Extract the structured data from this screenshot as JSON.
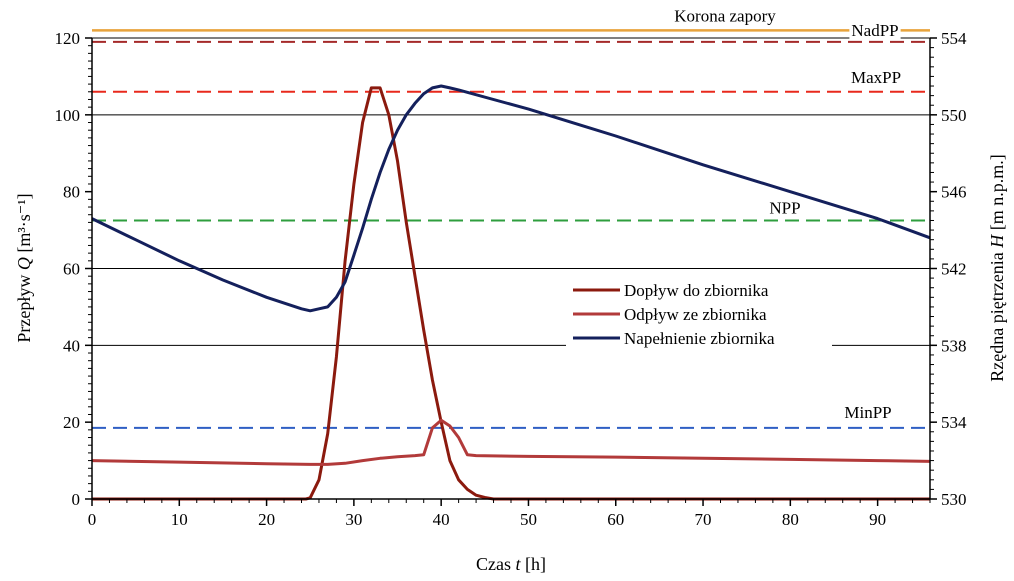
{
  "chart_data": {
    "type": "line",
    "x": {
      "label_main": "Czas ",
      "label_italic": "t",
      "label_unit": " [h]",
      "range": [
        0,
        96
      ],
      "ticks": [
        0,
        10,
        20,
        30,
        40,
        50,
        60,
        70,
        80,
        90
      ]
    },
    "y_left": {
      "label_prefix": "Przepływ ",
      "label_italic": "Q",
      "label_unit": " [m³·s⁻¹]",
      "range": [
        0,
        120
      ],
      "ticks": [
        0,
        20,
        40,
        60,
        80,
        100,
        120
      ],
      "gridlines": [
        0,
        40,
        60,
        100,
        120
      ]
    },
    "y_right": {
      "label_prefix": "Rzędna piętrzenia ",
      "label_italic": "H",
      "label_unit": " [m n.p.m.]",
      "range": [
        530,
        554
      ],
      "ticks": [
        530,
        534,
        538,
        542,
        546,
        550,
        554
      ]
    },
    "reference_lines": [
      {
        "label": "Korona zapory",
        "H": 554.4,
        "color": "#e8a33c",
        "style": "solid"
      },
      {
        "label": "NadPP",
        "H": 553.8,
        "color": "#a52a2a",
        "style": "dashed"
      },
      {
        "label": "MaxPP",
        "H": 551.2,
        "color": "#e8291c",
        "style": "dashed"
      },
      {
        "label": "NPP",
        "H": 544.5,
        "color": "#2e9e3e",
        "style": "dashed"
      },
      {
        "label": "MinPP",
        "H": 533.7,
        "color": "#2f5fc4",
        "style": "dashed"
      }
    ],
    "series": [
      {
        "name": "Dopływ do zbiornika",
        "axis": "left",
        "color": "#8b1a0e",
        "points": [
          [
            0,
            0
          ],
          [
            24.5,
            0
          ],
          [
            25,
            0.3
          ],
          [
            26,
            5
          ],
          [
            27,
            17
          ],
          [
            28,
            37
          ],
          [
            29,
            62
          ],
          [
            30,
            82
          ],
          [
            31,
            98
          ],
          [
            32,
            107
          ],
          [
            33,
            107
          ],
          [
            34,
            100
          ],
          [
            35,
            88
          ],
          [
            36,
            72
          ],
          [
            37,
            58
          ],
          [
            38,
            44
          ],
          [
            39,
            31
          ],
          [
            40,
            20
          ],
          [
            41,
            10
          ],
          [
            42,
            5
          ],
          [
            43,
            2.5
          ],
          [
            44,
            1
          ],
          [
            45,
            0.4
          ],
          [
            46,
            0
          ],
          [
            96,
            0
          ]
        ]
      },
      {
        "name": "Odpływ ze zbiornika",
        "axis": "left",
        "color": "#b23a3a",
        "points": [
          [
            0,
            10
          ],
          [
            10,
            9.6
          ],
          [
            20,
            9.2
          ],
          [
            25,
            9
          ],
          [
            27,
            9
          ],
          [
            29,
            9.3
          ],
          [
            31,
            10
          ],
          [
            33,
            10.6
          ],
          [
            35,
            11
          ],
          [
            37,
            11.3
          ],
          [
            38,
            11.5
          ],
          [
            39,
            18.5
          ],
          [
            40,
            20.5
          ],
          [
            41,
            19
          ],
          [
            42,
            16
          ],
          [
            43,
            11.5
          ],
          [
            44,
            11.3
          ],
          [
            50,
            11.1
          ],
          [
            60,
            10.9
          ],
          [
            70,
            10.6
          ],
          [
            80,
            10.3
          ],
          [
            90,
            10
          ],
          [
            96,
            9.8
          ]
        ]
      },
      {
        "name": "Napełnienie zbiornika",
        "axis": "right",
        "color": "#14205c",
        "points": [
          [
            0,
            544.6
          ],
          [
            5,
            543.5
          ],
          [
            10,
            542.4
          ],
          [
            15,
            541.4
          ],
          [
            20,
            540.5
          ],
          [
            24,
            539.9
          ],
          [
            25,
            539.8
          ],
          [
            26,
            539.9
          ],
          [
            27,
            540.0
          ],
          [
            28,
            540.5
          ],
          [
            29,
            541.3
          ],
          [
            30,
            542.7
          ],
          [
            31,
            544.1
          ],
          [
            32,
            545.6
          ],
          [
            33,
            547.0
          ],
          [
            34,
            548.2
          ],
          [
            35,
            549.2
          ],
          [
            36,
            550.0
          ],
          [
            37,
            550.6
          ],
          [
            38,
            551.1
          ],
          [
            39,
            551.4
          ],
          [
            40,
            551.5
          ],
          [
            41,
            551.4
          ],
          [
            42,
            551.3
          ],
          [
            50,
            550.3
          ],
          [
            60,
            548.9
          ],
          [
            70,
            547.4
          ],
          [
            80,
            546.0
          ],
          [
            90,
            544.6
          ],
          [
            96,
            543.6
          ]
        ]
      }
    ],
    "legend": [
      "Dopływ do zbiornika",
      "Odpływ ze zbiornika",
      "Napełnienie zbiornika"
    ]
  }
}
